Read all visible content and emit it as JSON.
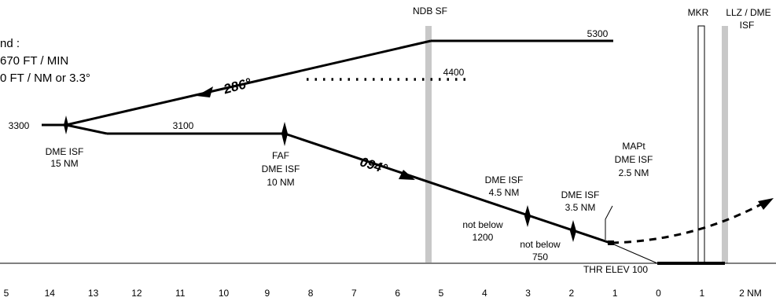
{
  "legend": {
    "line1": "nd :",
    "line2": "670 FT / MIN",
    "line3": "0 FT / NM or 3.3°"
  },
  "beacons": {
    "ndb": "NDB SF",
    "mkr": "MKR",
    "llz_line1": "LLZ / DME",
    "llz_line2": "ISF"
  },
  "altitudes": {
    "a5300": "5300",
    "a4400": "4400",
    "a3300": "3300",
    "a3100": "3100"
  },
  "bearings": {
    "outbound": "286°",
    "inbound": "094°"
  },
  "fixes": {
    "dme15_line1": "DME ISF",
    "dme15_line2": "15 NM",
    "faf_line1": "FAF",
    "faf_line2": "DME ISF",
    "faf_line3": "10 NM",
    "dme45_line1": "DME ISF",
    "dme45_line2": "4.5 NM",
    "dme35_line1": "DME ISF",
    "dme35_line2": "3.5 NM",
    "mapt_line1": "MAPt",
    "mapt_line2": "DME ISF",
    "mapt_line3": "2.5 NM"
  },
  "constraints": {
    "nb1200_line1": "not below",
    "nb1200_line2": "1200",
    "nb750_line1": "not below",
    "nb750_line2": "750"
  },
  "threshold": "THR ELEV 100",
  "distance_axis": {
    "ticks": [
      "5",
      "14",
      "13",
      "12",
      "11",
      "10",
      "9",
      "8",
      "7",
      "6",
      "5",
      "4",
      "3",
      "2",
      "1",
      "0",
      "1",
      "2 NM"
    ]
  },
  "colors": {
    "ink": "#000000",
    "beacon_bar": "#c8c8c8",
    "background": "#ffffff"
  }
}
